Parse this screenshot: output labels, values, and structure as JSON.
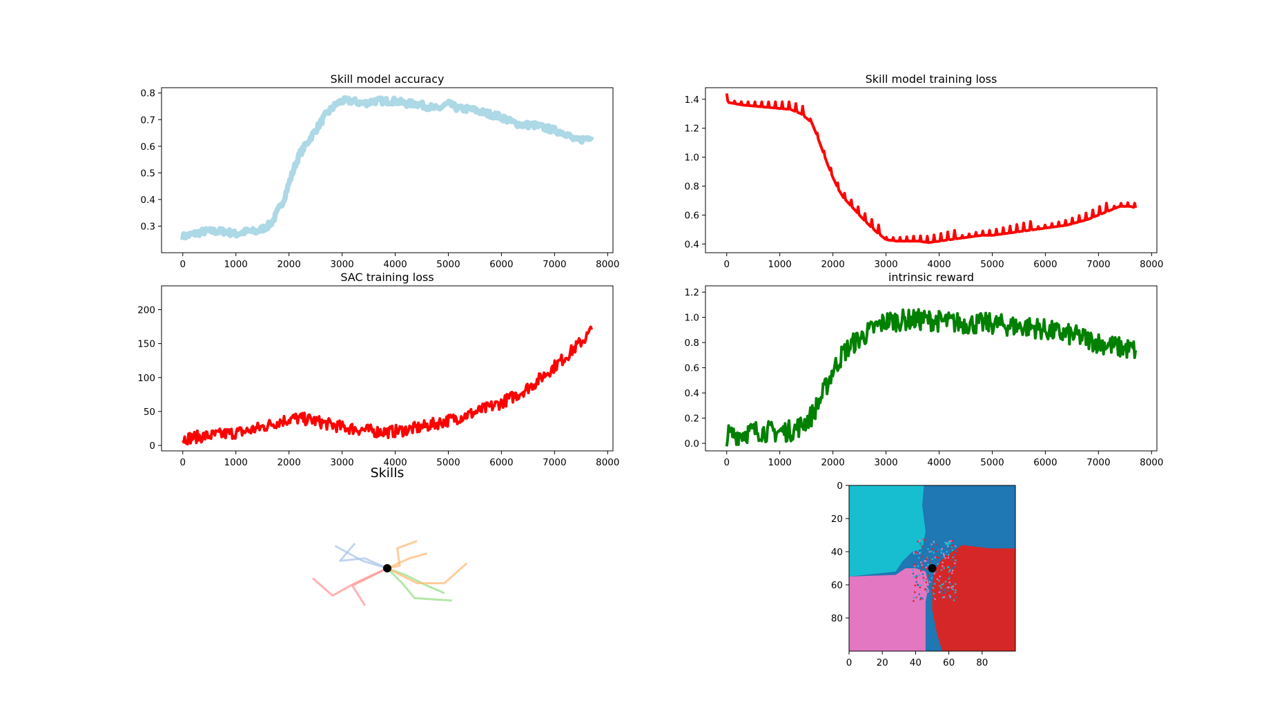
{
  "chart_data": [
    {
      "type": "line",
      "title": "Skill model accuracy",
      "xlabel": "",
      "ylabel": "",
      "xlim": [
        -400,
        8100
      ],
      "ylim": [
        0.2,
        0.82
      ],
      "xticks": [
        0,
        1000,
        2000,
        3000,
        4000,
        5000,
        6000,
        7000,
        8000
      ],
      "yticks": [
        0.3,
        0.4,
        0.5,
        0.6,
        0.7,
        0.8
      ],
      "ytick_labels": [
        "0.3",
        "0.4",
        "0.5",
        "0.6",
        "0.7",
        "0.8"
      ],
      "grid": false,
      "series": [
        {
          "color": "#add8e6",
          "x": [
            0,
            200,
            400,
            600,
            800,
            1000,
            1200,
            1400,
            1500,
            1600,
            1700,
            1800,
            1900,
            2000,
            2100,
            2200,
            2300,
            2400,
            2500,
            2600,
            2700,
            2800,
            2900,
            3000,
            3200,
            3400,
            3600,
            3800,
            4000,
            4200,
            4400,
            4600,
            4800,
            5000,
            5200,
            5400,
            5600,
            5800,
            6000,
            6200,
            6400,
            6600,
            6800,
            7000,
            7200,
            7400,
            7600,
            7700
          ],
          "y": [
            0.26,
            0.27,
            0.28,
            0.28,
            0.28,
            0.27,
            0.28,
            0.28,
            0.29,
            0.3,
            0.32,
            0.36,
            0.4,
            0.46,
            0.52,
            0.57,
            0.6,
            0.63,
            0.66,
            0.69,
            0.72,
            0.74,
            0.76,
            0.77,
            0.77,
            0.76,
            0.77,
            0.77,
            0.77,
            0.76,
            0.76,
            0.75,
            0.74,
            0.76,
            0.74,
            0.74,
            0.73,
            0.72,
            0.71,
            0.69,
            0.68,
            0.68,
            0.67,
            0.66,
            0.65,
            0.62,
            0.63,
            0.64
          ],
          "noise": 0.012
        }
      ]
    },
    {
      "type": "line",
      "title": "Skill model training loss",
      "xlabel": "",
      "ylabel": "",
      "xlim": [
        -400,
        8100
      ],
      "ylim": [
        0.34,
        1.48
      ],
      "xticks": [
        0,
        1000,
        2000,
        3000,
        4000,
        5000,
        6000,
        7000,
        8000
      ],
      "yticks": [
        0.4,
        0.6,
        0.8,
        1.0,
        1.2,
        1.4
      ],
      "ytick_labels": [
        "0.4",
        "0.6",
        "0.8",
        "1.0",
        "1.2",
        "1.4"
      ],
      "grid": false,
      "series": [
        {
          "color": "#ff0000",
          "x": [
            0,
            300,
            600,
            900,
            1200,
            1400,
            1600,
            1700,
            1800,
            1900,
            2000,
            2100,
            2200,
            2400,
            2600,
            2800,
            3000,
            3200,
            3400,
            3600,
            3800,
            4000,
            4200,
            4400,
            4600,
            4800,
            5000,
            5200,
            5400,
            5600,
            5800,
            6000,
            6200,
            6400,
            6600,
            6800,
            7000,
            7200,
            7400,
            7600,
            7700
          ],
          "y": [
            1.38,
            1.36,
            1.35,
            1.34,
            1.33,
            1.3,
            1.24,
            1.15,
            1.05,
            0.95,
            0.86,
            0.78,
            0.72,
            0.64,
            0.56,
            0.49,
            0.43,
            0.42,
            0.42,
            0.42,
            0.41,
            0.42,
            0.43,
            0.44,
            0.45,
            0.46,
            0.46,
            0.47,
            0.48,
            0.49,
            0.5,
            0.51,
            0.52,
            0.53,
            0.55,
            0.57,
            0.6,
            0.63,
            0.66,
            0.66,
            0.65
          ],
          "spike_every": 130,
          "spike_height": 0.06
        }
      ]
    },
    {
      "type": "line",
      "title": "SAC training loss",
      "xlabel": "",
      "ylabel": "",
      "xlim": [
        -400,
        8100
      ],
      "ylim": [
        -8,
        235
      ],
      "xticks": [
        0,
        1000,
        2000,
        3000,
        4000,
        5000,
        6000,
        7000,
        8000
      ],
      "yticks": [
        0,
        50,
        100,
        150,
        200
      ],
      "ytick_labels": [
        "0",
        "50",
        "100",
        "150",
        "200"
      ],
      "grid": false,
      "series": [
        {
          "color": "#ff0000",
          "x": [
            0,
            300,
            600,
            900,
            1200,
            1500,
            1800,
            2100,
            2400,
            2700,
            3000,
            3300,
            3600,
            3900,
            4200,
            4500,
            4800,
            5100,
            5400,
            5700,
            6000,
            6300,
            6600,
            6900,
            7200,
            7400,
            7600,
            7700
          ],
          "y": [
            10,
            13,
            15,
            18,
            21,
            27,
            35,
            40,
            38,
            32,
            27,
            24,
            21,
            20,
            23,
            27,
            33,
            39,
            46,
            54,
            63,
            75,
            90,
            110,
            130,
            145,
            160,
            170
          ],
          "noise": 9
        }
      ]
    },
    {
      "type": "line",
      "title": "intrinsic reward",
      "xlabel": "",
      "ylabel": "",
      "xlim": [
        -400,
        8100
      ],
      "ylim": [
        -0.06,
        1.25
      ],
      "xticks": [
        0,
        1000,
        2000,
        3000,
        4000,
        5000,
        6000,
        7000,
        8000
      ],
      "yticks": [
        0.0,
        0.2,
        0.4,
        0.6,
        0.8,
        1.0,
        1.2
      ],
      "ytick_labels": [
        "0.0",
        "0.2",
        "0.4",
        "0.6",
        "0.8",
        "1.0",
        "1.2"
      ],
      "grid": false,
      "series": [
        {
          "color": "#008000",
          "x": [
            0,
            300,
            600,
            900,
            1200,
            1400,
            1600,
            1800,
            2000,
            2200,
            2400,
            2600,
            2800,
            3000,
            3400,
            3800,
            4200,
            4600,
            5000,
            5400,
            5800,
            6200,
            6600,
            7000,
            7400,
            7700
          ],
          "y": [
            0.06,
            0.08,
            0.1,
            0.09,
            0.1,
            0.14,
            0.22,
            0.38,
            0.58,
            0.72,
            0.8,
            0.86,
            0.92,
            0.97,
            0.98,
            0.98,
            0.96,
            0.95,
            0.95,
            0.93,
            0.92,
            0.88,
            0.85,
            0.8,
            0.76,
            0.74
          ],
          "noise": 0.085
        }
      ]
    },
    {
      "type": "line",
      "title": "Skills",
      "series": [
        {
          "color": "#aec7e8",
          "x": [
            0,
            -0.9,
            -1.9,
            -1.3
          ],
          "y": [
            0,
            0.4,
            0.3,
            1.0
          ]
        },
        {
          "color": "#aec7e8",
          "x": [
            0,
            -1.0,
            -2.1
          ],
          "y": [
            0,
            0.3,
            0.9
          ]
        },
        {
          "color": "#ffbb78",
          "x": [
            0,
            0.9,
            1.6
          ],
          "y": [
            0,
            0.4,
            0.6
          ]
        },
        {
          "color": "#ffbb78",
          "x": [
            0,
            0.5,
            0.4,
            1.2
          ],
          "y": [
            0,
            0.1,
            0.8,
            1.1
          ]
        },
        {
          "color": "#98df8a",
          "x": [
            0,
            0.8,
            1.6,
            2.3
          ],
          "y": [
            0,
            -0.3,
            -0.7,
            -1.0
          ]
        },
        {
          "color": "#98df8a",
          "x": [
            0,
            0.6,
            1.1,
            2.6
          ],
          "y": [
            0,
            -0.6,
            -1.2,
            -1.3
          ]
        },
        {
          "color": "#ffbb78",
          "x": [
            0,
            1.2,
            2.3,
            3.2
          ],
          "y": [
            0,
            -0.6,
            -0.6,
            0.2
          ]
        },
        {
          "color": "#ff9896",
          "x": [
            0,
            -1.3,
            -2.2,
            -3.0
          ],
          "y": [
            0,
            -0.6,
            -1.1,
            -0.4
          ]
        },
        {
          "color": "#ff9896",
          "x": [
            0,
            -1.4,
            -0.9
          ],
          "y": [
            0,
            -0.7,
            -1.5
          ]
        }
      ],
      "marker": {
        "x": 0,
        "y": 0,
        "color": "#000000"
      }
    },
    {
      "type": "heatmap",
      "title": "",
      "xlim": [
        0,
        100
      ],
      "ylim": [
        100,
        0
      ],
      "xticks": [
        0,
        20,
        40,
        60,
        80
      ],
      "yticks": [
        0,
        20,
        40,
        60,
        80
      ],
      "tick_labels": [
        "0",
        "20",
        "40",
        "60",
        "80"
      ],
      "regions": [
        {
          "color": "#17becf"
        },
        {
          "color": "#1f77b4"
        },
        {
          "color": "#e377c2"
        },
        {
          "color": "#d62728"
        }
      ],
      "marker": {
        "x": 50,
        "y": 50,
        "color": "#000000"
      }
    }
  ]
}
